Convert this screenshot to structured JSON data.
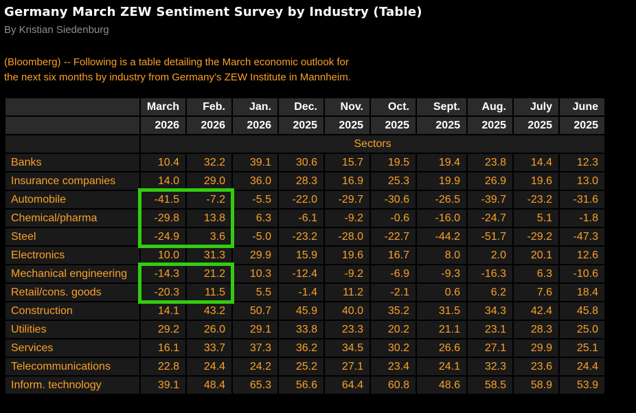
{
  "article": {
    "title": "Germany March ZEW Sentiment Survey by Industry (Table)",
    "byline": "By Kristian Siedenburg",
    "lede_line1": "(Bloomberg) -- Following is a table detailing the March economic outlook for",
    "lede_line2": "the next six months by industry from Germany’s ZEW Institute in Mannheim."
  },
  "chart_data": {
    "type": "table",
    "title": "Germany March ZEW Sentiment Survey by Industry (Table)",
    "group_label": "Sectors",
    "columns_months": [
      "March",
      "Feb.",
      "Jan.",
      "Dec.",
      "Nov.",
      "Oct.",
      "Sept.",
      "Aug.",
      "July",
      "June"
    ],
    "columns_years": [
      "2026",
      "2026",
      "2026",
      "2025",
      "2025",
      "2025",
      "2025",
      "2025",
      "2025",
      "2025"
    ],
    "series": [
      {
        "name": "Banks",
        "values": [
          10.4,
          32.2,
          39.1,
          30.6,
          15.7,
          19.5,
          19.4,
          23.8,
          14.4,
          12.3
        ]
      },
      {
        "name": "Insurance companies",
        "values": [
          14.0,
          29.0,
          36.0,
          28.3,
          16.9,
          25.3,
          19.9,
          26.9,
          19.6,
          13.0
        ]
      },
      {
        "name": "Automobile",
        "values": [
          -41.5,
          -7.2,
          -5.5,
          -22.0,
          -29.7,
          -30.6,
          -26.5,
          -39.7,
          -23.2,
          -31.6
        ]
      },
      {
        "name": "Chemical/pharma",
        "values": [
          -29.8,
          13.8,
          6.3,
          -6.1,
          -9.2,
          -0.6,
          -16.0,
          -24.7,
          5.1,
          -1.8
        ]
      },
      {
        "name": "Steel",
        "values": [
          -24.9,
          3.6,
          -5.0,
          -23.2,
          -28.0,
          -22.7,
          -44.2,
          -51.7,
          -29.2,
          -47.3
        ]
      },
      {
        "name": "Electronics",
        "values": [
          10.0,
          31.3,
          29.9,
          15.9,
          19.6,
          16.7,
          8.0,
          2.0,
          20.1,
          12.6
        ]
      },
      {
        "name": "Mechanical engineering",
        "values": [
          -14.3,
          21.2,
          10.3,
          -12.4,
          -9.2,
          -6.9,
          -9.3,
          -16.3,
          6.3,
          -10.6
        ]
      },
      {
        "name": "Retail/cons. goods",
        "values": [
          -20.3,
          11.5,
          5.5,
          -1.4,
          11.2,
          -2.1,
          0.6,
          6.2,
          7.6,
          18.4
        ]
      },
      {
        "name": "Construction",
        "values": [
          14.1,
          43.2,
          50.7,
          45.9,
          40.0,
          35.2,
          31.5,
          34.3,
          42.4,
          45.8
        ]
      },
      {
        "name": "Utilities",
        "values": [
          29.2,
          26.0,
          29.1,
          33.8,
          23.3,
          20.2,
          21.1,
          23.1,
          28.3,
          25.0
        ]
      },
      {
        "name": "Services",
        "values": [
          16.1,
          33.7,
          37.3,
          36.2,
          34.5,
          30.2,
          26.6,
          27.1,
          29.9,
          25.1
        ]
      },
      {
        "name": "Telecommunications",
        "values": [
          22.8,
          24.4,
          24.2,
          25.2,
          27.1,
          23.4,
          24.1,
          32.3,
          23.6,
          24.4
        ]
      },
      {
        "name": "Inform. technology",
        "values": [
          39.1,
          48.4,
          65.3,
          56.6,
          64.4,
          60.8,
          48.6,
          58.5,
          58.9,
          53.9
        ]
      }
    ],
    "highlights": [
      {
        "rows": [
          "Automobile",
          "Chemical/pharma",
          "Steel"
        ],
        "cols": [
          "March",
          "Feb."
        ],
        "row_start": 2,
        "row_end": 4,
        "col_start": 0,
        "col_end": 1
      },
      {
        "rows": [
          "Mechanical engineering",
          "Retail/cons. goods"
        ],
        "cols": [
          "March",
          "Feb."
        ],
        "row_start": 6,
        "row_end": 7,
        "col_start": 0,
        "col_end": 1
      }
    ]
  },
  "colors": {
    "accent_orange": "#fba127",
    "highlight_green": "#33cc11",
    "header_bg": "#2b2b2b",
    "row_bg": "#1a1a1a",
    "sectors_row_bg": "#1d1d1d",
    "byline_gray": "#8e8e8e",
    "header_text": "#ffffff",
    "page_bg": "#000000"
  }
}
